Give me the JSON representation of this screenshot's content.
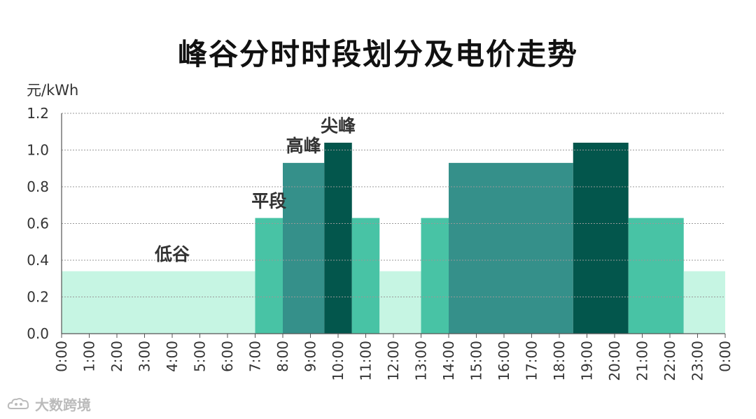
{
  "chart_data": {
    "type": "bar",
    "title": "峰谷分时时段划分及电价走势",
    "ylabel": "元/kWh",
    "ylim": [
      0,
      1.2
    ],
    "y_ticks": [
      "0.0",
      "0.2",
      "0.4",
      "0.6",
      "0.8",
      "1.0",
      "1.2"
    ],
    "x_ticks": [
      "0:00",
      "1:00",
      "2:00",
      "3:00",
      "4:00",
      "5:00",
      "6:00",
      "7:00",
      "8:00",
      "9:00",
      "10:00",
      "11:00",
      "12:00",
      "13:00",
      "14:00",
      "15:00",
      "16:00",
      "17:00",
      "18:00",
      "19:00",
      "20:00",
      "21:00",
      "22:00",
      "23:00",
      "0:00"
    ],
    "grid": true,
    "categories": [
      {
        "label": "低谷",
        "color": "#c6f5e3"
      },
      {
        "label": "平段",
        "color": "#48c3a5"
      },
      {
        "label": "高峰",
        "color": "#35908a"
      },
      {
        "label": "尖峰",
        "color": "#03564c"
      }
    ],
    "segments": [
      {
        "start": 0,
        "end": 7,
        "value": 0.34,
        "category": "低谷"
      },
      {
        "start": 7,
        "end": 8,
        "value": 0.63,
        "category": "平段"
      },
      {
        "start": 8,
        "end": 9.5,
        "value": 0.93,
        "category": "高峰"
      },
      {
        "start": 9.5,
        "end": 10.5,
        "value": 1.04,
        "category": "尖峰"
      },
      {
        "start": 10.5,
        "end": 11.5,
        "value": 0.63,
        "category": "平段"
      },
      {
        "start": 11.5,
        "end": 13,
        "value": 0.34,
        "category": "低谷"
      },
      {
        "start": 13,
        "end": 14,
        "value": 0.63,
        "category": "平段"
      },
      {
        "start": 14,
        "end": 18.5,
        "value": 0.93,
        "category": "高峰"
      },
      {
        "start": 18.5,
        "end": 20.5,
        "value": 1.04,
        "category": "尖峰"
      },
      {
        "start": 20.5,
        "end": 22.5,
        "value": 0.63,
        "category": "平段"
      },
      {
        "start": 22.5,
        "end": 24,
        "value": 0.34,
        "category": "低谷"
      }
    ],
    "annotations": [
      {
        "text": "低谷",
        "x": 4.0,
        "y": 0.4
      },
      {
        "text": "平段",
        "x": 7.5,
        "y": 0.69
      },
      {
        "text": "高峰",
        "x": 8.75,
        "y": 0.99
      },
      {
        "text": "尖峰",
        "x": 10.0,
        "y": 1.1
      }
    ]
  },
  "watermark": {
    "text": "大数跨境",
    "icon": "cloud-logo-icon"
  }
}
